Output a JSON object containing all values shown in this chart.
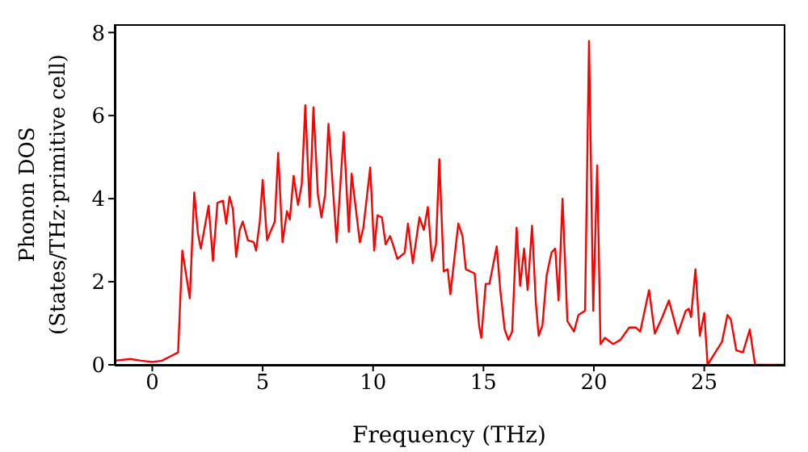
{
  "chart_data": {
    "type": "line",
    "xlabel": "Frequency (THz)",
    "ylabel": "Phonon DOS\n(States/THz·primitive cell)",
    "xlim": [
      -1.7,
      28.6
    ],
    "xticks": [
      0,
      5,
      10,
      15,
      20,
      25
    ],
    "ylim": [
      0,
      8.2
    ],
    "yticks": [
      0,
      2,
      4,
      6,
      8
    ],
    "marker": "none",
    "line_style": "solid",
    "series": [
      {
        "color": "#ff0000",
        "x": [
          -1.7,
          -1.0,
          -0.5,
          0,
          0.44,
          0.8,
          1.17,
          1.36,
          1.7,
          1.9,
          2.07,
          2.2,
          2.55,
          2.75,
          2.95,
          3.2,
          3.35,
          3.5,
          3.65,
          3.8,
          3.96,
          4.1,
          4.33,
          4.6,
          4.7,
          4.87,
          5.0,
          5.2,
          5.35,
          5.55,
          5.7,
          5.9,
          6.1,
          6.23,
          6.4,
          6.6,
          6.77,
          6.93,
          7.13,
          7.3,
          7.5,
          7.66,
          7.83,
          7.98,
          8.35,
          8.67,
          8.9,
          9.03,
          9.4,
          9.56,
          9.87,
          10.05,
          10.2,
          10.4,
          10.57,
          10.77,
          10.93,
          11.1,
          11.43,
          11.58,
          11.8,
          12.1,
          12.3,
          12.48,
          12.67,
          12.85,
          13.0,
          13.2,
          13.38,
          13.5,
          13.86,
          14.05,
          14.2,
          14.6,
          14.8,
          14.9,
          15.1,
          15.27,
          15.6,
          15.77,
          15.96,
          16.13,
          16.3,
          16.5,
          16.66,
          16.84,
          17.0,
          17.2,
          17.37,
          17.5,
          17.67,
          17.86,
          18.08,
          18.25,
          18.4,
          18.58,
          18.8,
          19.1,
          19.3,
          19.6,
          19.78,
          19.97,
          20.15,
          20.3,
          20.5,
          20.87,
          21.2,
          21.6,
          21.9,
          22.1,
          22.5,
          22.76,
          23.1,
          23.4,
          23.8,
          24.16,
          24.3,
          24.4,
          24.6,
          24.8,
          25.0,
          25.15,
          25.5,
          25.8,
          26.05,
          26.2,
          26.45,
          26.75,
          27.06,
          27.3,
          28.6
        ],
        "values": [
          0.1,
          0.14,
          0.1,
          0.07,
          0.1,
          0.2,
          0.3,
          2.75,
          1.6,
          4.15,
          3.15,
          2.8,
          3.83,
          2.5,
          3.9,
          3.95,
          3.4,
          4.05,
          3.75,
          2.6,
          3.25,
          3.45,
          3.0,
          2.95,
          2.75,
          3.45,
          4.45,
          3.0,
          3.2,
          3.45,
          5.1,
          2.95,
          3.7,
          3.5,
          4.55,
          3.85,
          4.35,
          6.25,
          3.8,
          6.2,
          4.1,
          3.55,
          4.1,
          5.8,
          2.95,
          5.6,
          3.2,
          4.6,
          2.95,
          3.3,
          4.75,
          2.75,
          3.6,
          3.55,
          2.9,
          3.1,
          2.85,
          2.55,
          2.7,
          3.4,
          2.45,
          3.55,
          3.25,
          3.8,
          2.5,
          2.9,
          4.95,
          2.25,
          2.3,
          1.7,
          3.4,
          3.1,
          2.3,
          2.2,
          0.95,
          0.65,
          1.95,
          1.95,
          2.85,
          1.75,
          0.85,
          0.6,
          0.8,
          3.3,
          1.9,
          2.8,
          1.8,
          3.35,
          1.5,
          0.7,
          0.95,
          2.15,
          2.7,
          2.8,
          1.55,
          4.0,
          1.05,
          0.8,
          1.2,
          1.3,
          7.8,
          1.3,
          4.8,
          0.5,
          0.65,
          0.5,
          0.6,
          0.9,
          0.9,
          0.8,
          1.8,
          0.75,
          1.15,
          1.55,
          0.75,
          1.3,
          1.35,
          1.15,
          2.3,
          0.7,
          1.25,
          0,
          0.3,
          0.55,
          1.2,
          1.1,
          0.35,
          0.3,
          0.85,
          0,
          0
        ]
      }
    ]
  }
}
